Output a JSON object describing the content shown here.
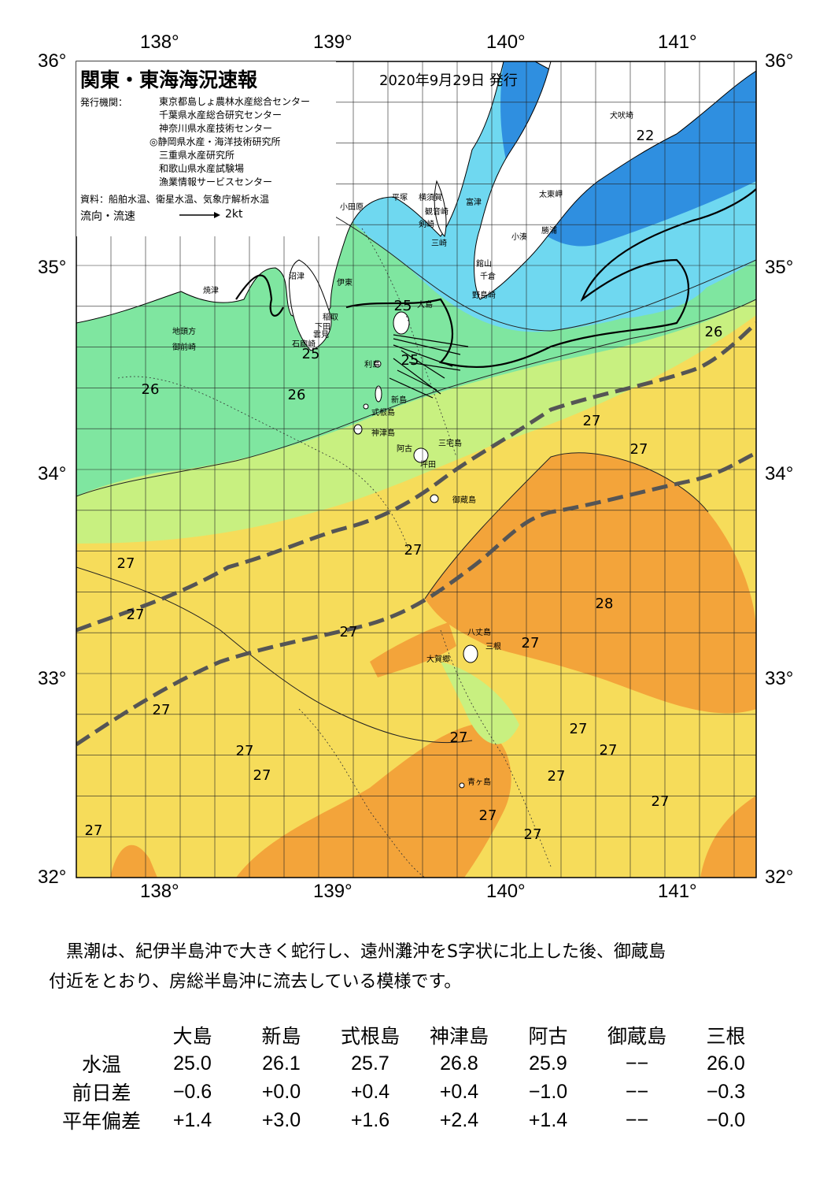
{
  "map": {
    "title": "関東・東海海況速報",
    "issue_date": "2020年9月29日 発行",
    "publisher_label": "発行機関：",
    "publishers": [
      "東京都島しょ農林水産総合センター",
      "千葉県水産総合研究センター",
      "神奈川県水産技術センター",
      "◎静岡県水産・海洋技術研究所",
      "三重県水産研究所",
      "和歌山県水産試験場",
      "漁業情報サービスセンター"
    ],
    "source": "資料：船舶水温、衛星水温、気象庁解析水温",
    "current_label": "流向・流速",
    "current_scale": "2kt",
    "lon_labels": [
      "138°",
      "139°",
      "140°",
      "141°"
    ],
    "lat_labels": [
      "36°",
      "35°",
      "34°",
      "33°",
      "32°"
    ],
    "colors": {
      "sst_22": "#2f8fe0",
      "sst_24": "#6fd8f0",
      "sst_25": "#7fe6a0",
      "sst_26": "#c8f080",
      "sst_27": "#f6dc5a",
      "sst_28": "#f3a43a",
      "kuroshio_axis": "#555555"
    },
    "isotherm_labels": [
      {
        "text": "22"
      },
      {
        "text": "25"
      },
      {
        "text": "25"
      },
      {
        "text": "25"
      },
      {
        "text": "26"
      },
      {
        "text": "26"
      },
      {
        "text": "26"
      },
      {
        "text": "27"
      },
      {
        "text": "27"
      },
      {
        "text": "27"
      },
      {
        "text": "27"
      },
      {
        "text": "27"
      },
      {
        "text": "27"
      },
      {
        "text": "27"
      },
      {
        "text": "28"
      },
      {
        "text": "27"
      },
      {
        "text": "27"
      },
      {
        "text": "27"
      },
      {
        "text": "27"
      },
      {
        "text": "27"
      },
      {
        "text": "27"
      },
      {
        "text": "27"
      },
      {
        "text": "27"
      },
      {
        "text": "27"
      },
      {
        "text": "27"
      },
      {
        "text": "27"
      }
    ],
    "place_names": [
      "犬吠埼",
      "太東岬",
      "勝浦",
      "小湊",
      "館山",
      "千倉",
      "野島崎",
      "富津",
      "観音崎",
      "横須賀",
      "平塚",
      "剣崎",
      "三崎",
      "小田原",
      "沼津",
      "伊東",
      "焼津",
      "稲取",
      "下田",
      "雲見",
      "石廊崎",
      "地頭方",
      "御前崎",
      "大島",
      "利島",
      "新島",
      "式根島",
      "神津島",
      "三宅島",
      "阿古",
      "坪田",
      "御蔵島",
      "八丈島",
      "三根",
      "大賀郷",
      "青ヶ島"
    ]
  },
  "caption": [
    "黒潮は、紀伊半島沖で大きく蛇行し、遠州灘沖をS字状に北上した後、御蔵島",
    "付近をとおり、房総半島沖に流去している模様です。"
  ],
  "station_table": {
    "columns": [
      "大島",
      "新島",
      "式根島",
      "神津島",
      "阿古",
      "御蔵島",
      "三根"
    ],
    "rows": [
      {
        "label": "水温",
        "values": [
          "25.0",
          "26.1",
          "25.7",
          "26.8",
          "25.9",
          "−−",
          "26.0"
        ]
      },
      {
        "label": "前日差",
        "values": [
          "−0.6",
          "+0.0",
          "+0.4",
          "+0.4",
          "−1.0",
          "−−",
          "−0.3"
        ]
      },
      {
        "label": "平年偏差",
        "values": [
          "+1.4",
          "+3.0",
          "+1.6",
          "+2.4",
          "+1.4",
          "−−",
          "−0.0"
        ]
      }
    ]
  }
}
